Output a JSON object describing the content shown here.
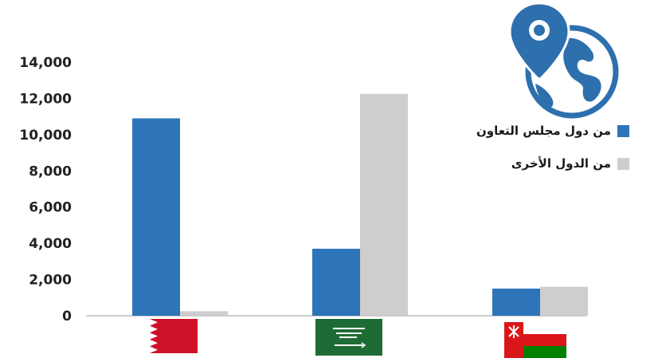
{
  "chart_data": {
    "type": "bar",
    "categories": [
      "Bahrain",
      "Saudi Arabia",
      "Oman"
    ],
    "series": [
      {
        "name": "من دول مجلس التعاون",
        "color": "#2e74b8",
        "values": [
          10900,
          3700,
          1500
        ]
      },
      {
        "name": "من الدول الأخرى",
        "color": "#cfcdce",
        "values": [
          250,
          12250,
          1600
        ]
      }
    ],
    "yticks": [
      0,
      2000,
      4000,
      6000,
      8000,
      10000,
      12000,
      14000
    ],
    "ytick_labels": [
      "0",
      "2,000",
      "4,000",
      "6,000",
      "8,000",
      "10,000",
      "12,000",
      "14,000"
    ],
    "ylim": [
      0,
      14000
    ],
    "title": "",
    "xlabel": "",
    "ylabel": "",
    "legend_position": "right",
    "category_icons": [
      "bahrain-flag-icon",
      "saudi-flag-icon",
      "oman-flag-icon"
    ],
    "corner_icon": "globe-location-pin-icon"
  }
}
